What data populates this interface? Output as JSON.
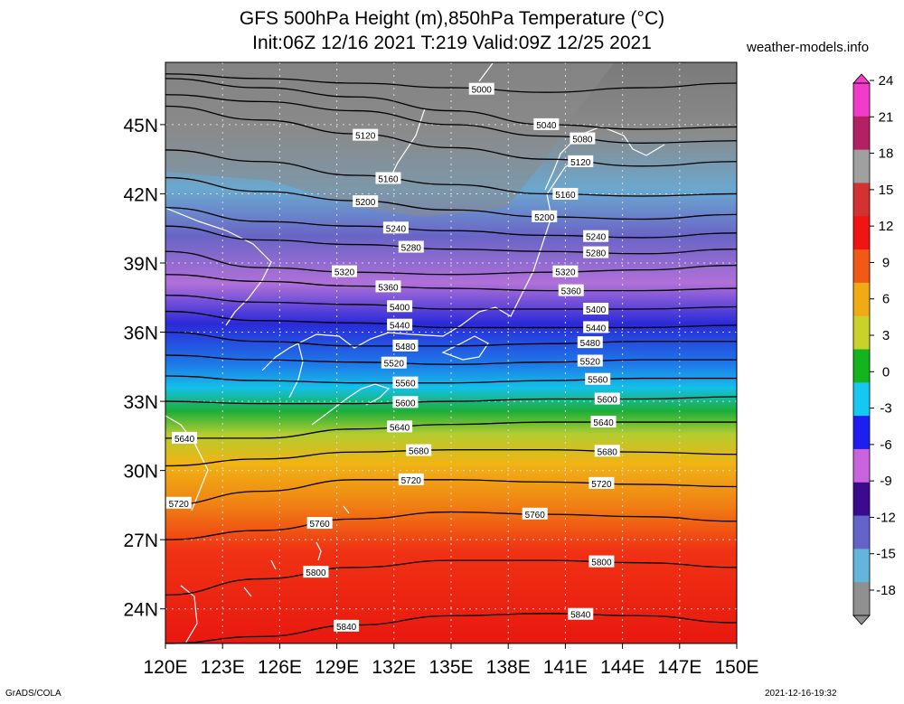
{
  "title_line1": "GFS 500hPa Height (m),850hPa Temperature (°C)",
  "title_line2": "Init:06Z 12/16 2021 T:219 Valid:09Z 12/25 2021",
  "site": "weather-models.info",
  "footer_left": "GrADS/COLA",
  "footer_right": "2021-12-16-19:32",
  "lat_labels": [
    "45N",
    "42N",
    "39N",
    "36N",
    "33N",
    "30N",
    "27N",
    "24N"
  ],
  "lat_values": [
    45,
    42,
    39,
    36,
    33,
    30,
    27,
    24
  ],
  "lon_labels": [
    "120E",
    "123E",
    "126E",
    "129E",
    "132E",
    "135E",
    "138E",
    "141E",
    "144E",
    "147E",
    "150E"
  ],
  "lon_values": [
    120,
    123,
    126,
    129,
    132,
    135,
    138,
    141,
    144,
    147,
    150
  ],
  "colorbar_labels": [
    "24",
    "21",
    "18",
    "15",
    "12",
    "9",
    "6",
    "3",
    "0",
    "-3",
    "-6",
    "-9",
    "-12",
    "-15",
    "-18"
  ],
  "colorbar_values": [
    24,
    21,
    18,
    15,
    12,
    9,
    6,
    3,
    0,
    -3,
    -6,
    -9,
    -12,
    -15,
    -18
  ],
  "colorbar_colors": [
    "#f03cc8",
    "#b42064",
    "#a0a0a0",
    "#d23232",
    "#f01414",
    "#f05a14",
    "#f0aa14",
    "#c8d228",
    "#14b41e",
    "#14c8f0",
    "#1e1ef0",
    "#c864dc",
    "#3c0a8c",
    "#6464c8",
    "#64b4dc",
    "#909090"
  ],
  "contours": [
    {
      "label": "5000",
      "label_lons": [
        136.6
      ],
      "lats": [
        47.2,
        47.0,
        46.8,
        46.6,
        46.4,
        46.6,
        46.8
      ]
    },
    {
      "label": "5040",
      "label_lons": [
        140.0
      ],
      "lats": [
        47.0,
        46.6,
        46.2,
        45.6,
        45.0,
        44.8,
        44.9
      ]
    },
    {
      "label": "5080",
      "label_lons": [
        141.9
      ],
      "lats": [
        46.3,
        46.0,
        45.6,
        45.0,
        44.5,
        44.2,
        44.3
      ]
    },
    {
      "label": "5120",
      "label_lons": [
        130.5,
        141.8
      ],
      "lats": [
        45.8,
        45.2,
        44.6,
        44.0,
        43.5,
        43.2,
        43.4
      ]
    },
    {
      "label": "5160",
      "label_lons": [
        131.7,
        141.0
      ],
      "lats": [
        43.9,
        43.4,
        42.8,
        42.4,
        42.0,
        41.9,
        42.0
      ]
    },
    {
      "label": "5200",
      "label_lons": [
        130.5,
        139.9
      ],
      "lats": [
        42.7,
        42.1,
        41.7,
        41.3,
        41.0,
        40.9,
        41.1
      ]
    },
    {
      "label": "5240",
      "label_lons": [
        132.1,
        142.6
      ],
      "lats": [
        41.4,
        40.8,
        40.6,
        40.4,
        40.2,
        40.1,
        40.3
      ]
    },
    {
      "label": "5280",
      "label_lons": [
        132.9,
        142.6
      ],
      "lats": [
        40.6,
        40.0,
        39.8,
        39.6,
        39.5,
        39.4,
        39.6
      ]
    },
    {
      "label": "5320",
      "label_lons": [
        129.4,
        141.0
      ],
      "lats": [
        39.5,
        38.8,
        38.6,
        38.5,
        38.6,
        38.7,
        38.9
      ]
    },
    {
      "label": "5360",
      "label_lons": [
        131.7,
        141.3
      ],
      "lats": [
        38.5,
        38.2,
        38.0,
        37.9,
        37.8,
        37.8,
        37.9
      ]
    },
    {
      "label": "5400",
      "label_lons": [
        132.3,
        142.6
      ],
      "lats": [
        37.6,
        37.3,
        37.2,
        37.0,
        37.0,
        37.0,
        37.1
      ]
    },
    {
      "label": "5440",
      "label_lons": [
        132.3,
        142.6
      ],
      "lats": [
        36.9,
        36.5,
        36.4,
        36.2,
        36.2,
        36.2,
        36.3
      ]
    },
    {
      "label": "5480",
      "label_lons": [
        132.6,
        142.3
      ],
      "lats": [
        36.0,
        35.6,
        35.4,
        35.4,
        35.5,
        35.6,
        35.6
      ]
    },
    {
      "label": "5520",
      "label_lons": [
        132.0,
        142.3
      ],
      "lats": [
        35.0,
        34.8,
        34.7,
        34.6,
        34.7,
        34.8,
        34.8
      ]
    },
    {
      "label": "5560",
      "label_lons": [
        132.6,
        142.7
      ],
      "lats": [
        34.1,
        33.9,
        33.8,
        33.8,
        33.9,
        34.0,
        34.0
      ]
    },
    {
      "label": "5600",
      "label_lons": [
        132.6,
        143.2
      ],
      "lats": [
        33.0,
        32.9,
        32.9,
        33.0,
        33.1,
        33.1,
        33.2
      ]
    },
    {
      "label": "5640",
      "label_lons": [
        121.0,
        132.3,
        143.0
      ],
      "lats": [
        31.4,
        31.4,
        31.8,
        32.0,
        32.1,
        32.1,
        32.1
      ]
    },
    {
      "label": "5680",
      "label_lons": [
        133.3,
        143.2
      ],
      "lats": [
        30.2,
        30.5,
        30.8,
        30.9,
        30.9,
        30.8,
        30.7
      ]
    },
    {
      "label": "5720",
      "label_lons": [
        120.7,
        132.9,
        142.9
      ],
      "lats": [
        28.5,
        29.1,
        29.6,
        29.6,
        29.5,
        29.4,
        29.3
      ]
    },
    {
      "label": "5760",
      "label_lons": [
        128.1,
        139.4
      ],
      "lats": [
        27.0,
        27.4,
        27.9,
        28.2,
        28.1,
        28.0,
        27.8
      ]
    },
    {
      "label": "5800",
      "label_lons": [
        127.9,
        142.9
      ],
      "lats": [
        24.6,
        25.3,
        25.8,
        26.1,
        26.1,
        26.0,
        25.8
      ]
    },
    {
      "label": "5840",
      "label_lons": [
        129.5,
        141.8
      ],
      "lats": [
        22.5,
        22.8,
        23.3,
        23.7,
        23.8,
        23.7,
        23.4
      ]
    }
  ]
}
